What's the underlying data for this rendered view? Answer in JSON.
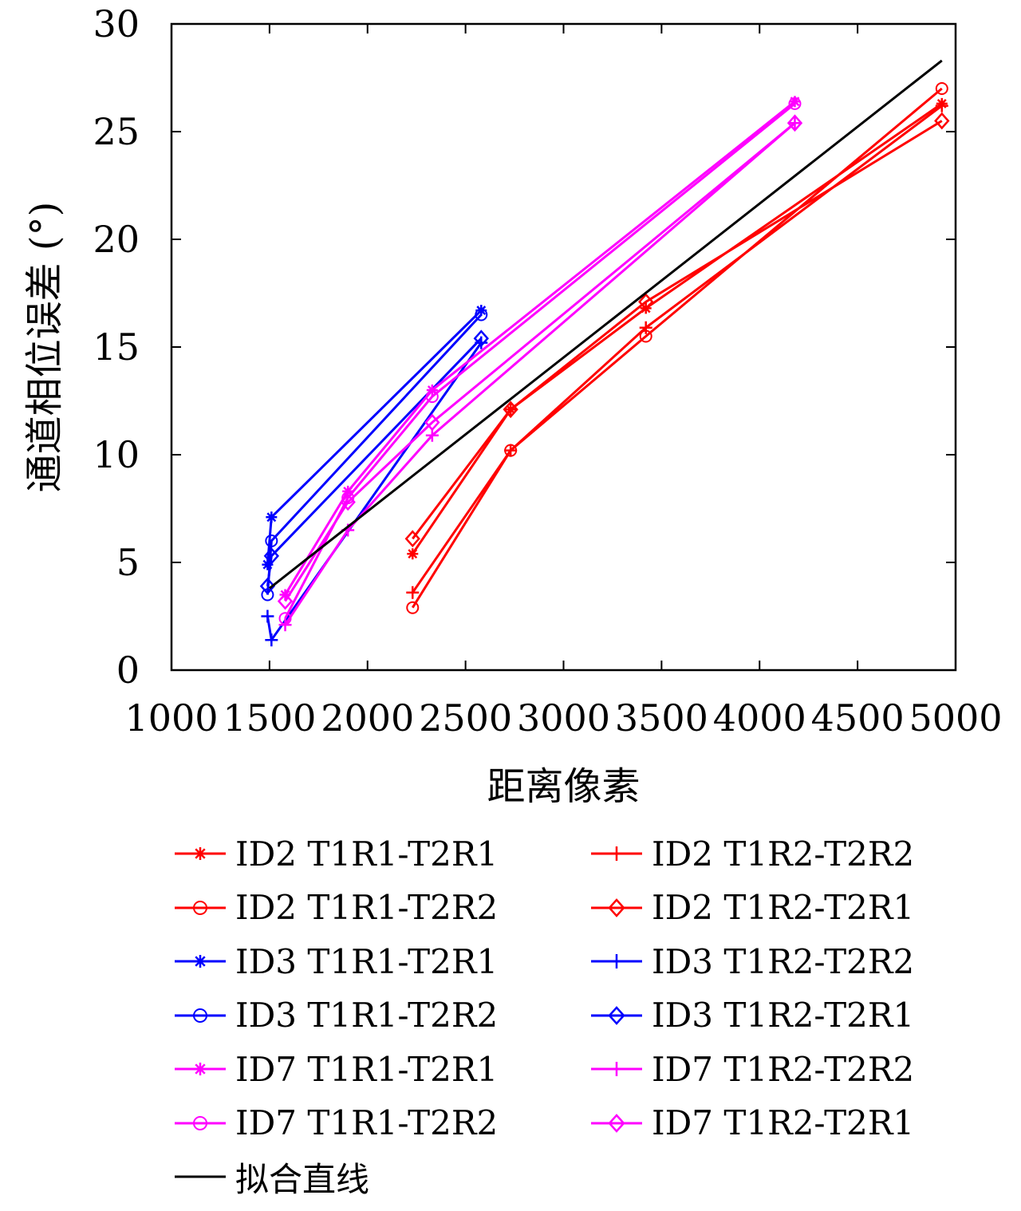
{
  "chart_data": {
    "type": "line",
    "title": "",
    "xlabel": "距离像素",
    "ylabel": "通道相位误差 (°)",
    "xlim": [
      1000,
      5000
    ],
    "ylim": [
      0,
      30
    ],
    "xticks": [
      "1000",
      "1500",
      "2000",
      "2500",
      "3000",
      "3500",
      "4000",
      "4500",
      "5000"
    ],
    "yticks": [
      "0",
      "5",
      "10",
      "15",
      "20",
      "25",
      "30"
    ],
    "legend_position": "below",
    "series": [
      {
        "name": "ID2 T1R1-T2R1",
        "color": "#ff0000",
        "marker": "asterisk",
        "x": [
          2230,
          2730,
          3420,
          4930
        ],
        "y": [
          5.4,
          12.1,
          16.8,
          26.3
        ]
      },
      {
        "name": "ID2 T1R2-T2R2",
        "color": "#ff0000",
        "marker": "plus",
        "x": [
          2230,
          2730,
          3420,
          4930
        ],
        "y": [
          3.6,
          10.2,
          15.9,
          26.2
        ]
      },
      {
        "name": "ID2 T1R1-T2R2",
        "color": "#ff0000",
        "marker": "circle",
        "x": [
          2230,
          2730,
          3420,
          4930
        ],
        "y": [
          2.9,
          10.2,
          15.5,
          27.0
        ]
      },
      {
        "name": "ID2 T1R2-T2R1",
        "color": "#ff0000",
        "marker": "diamond",
        "x": [
          2230,
          2730,
          3420,
          4930
        ],
        "y": [
          6.1,
          12.1,
          17.1,
          25.5
        ]
      },
      {
        "name": "ID3 T1R1-T2R1",
        "color": "#0000ff",
        "marker": "asterisk",
        "x": [
          1490,
          1510,
          2580
        ],
        "y": [
          4.9,
          7.1,
          16.7
        ]
      },
      {
        "name": "ID3 T1R2-T2R2",
        "color": "#0000ff",
        "marker": "plus",
        "x": [
          1490,
          1510,
          2580
        ],
        "y": [
          2.5,
          1.4,
          15.2
        ]
      },
      {
        "name": "ID3 T1R1-T2R2",
        "color": "#0000ff",
        "marker": "circle",
        "x": [
          1490,
          1510,
          2580
        ],
        "y": [
          3.5,
          6.0,
          16.5
        ]
      },
      {
        "name": "ID3 T1R2-T2R1",
        "color": "#0000ff",
        "marker": "diamond",
        "x": [
          1490,
          1510,
          2580
        ],
        "y": [
          3.9,
          5.3,
          15.4
        ]
      },
      {
        "name": "ID7 T1R1-T2R1",
        "color": "#ff00ff",
        "marker": "asterisk",
        "x": [
          1580,
          1900,
          2330,
          4180
        ],
        "y": [
          3.5,
          8.3,
          13.0,
          26.4
        ]
      },
      {
        "name": "ID7 T1R2-T2R2",
        "color": "#ff00ff",
        "marker": "plus",
        "x": [
          1580,
          1900,
          2330,
          4180
        ],
        "y": [
          2.1,
          6.5,
          10.9,
          25.4
        ]
      },
      {
        "name": "ID7 T1R1-T2R2",
        "color": "#ff00ff",
        "marker": "circle",
        "x": [
          1580,
          1900,
          2330,
          4180
        ],
        "y": [
          2.4,
          8.0,
          12.7,
          26.3
        ]
      },
      {
        "name": "ID7 T1R2-T2R1",
        "color": "#ff00ff",
        "marker": "diamond",
        "x": [
          1580,
          1900,
          2330,
          4180
        ],
        "y": [
          3.2,
          7.8,
          11.5,
          25.4
        ]
      },
      {
        "name": "拟合直线",
        "color": "#000000",
        "marker": "none",
        "x": [
          1500,
          4930
        ],
        "y": [
          3.8,
          28.3
        ]
      }
    ]
  }
}
